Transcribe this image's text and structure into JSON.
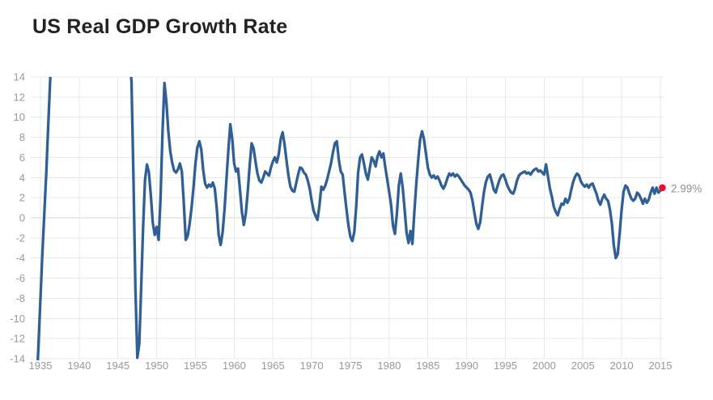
{
  "header": {
    "title": "US Real GDP Growth Rate"
  },
  "chart_data": {
    "type": "line",
    "title": "US Real GDP Growth Rate",
    "xlabel": "",
    "ylabel": "",
    "legend": "none",
    "grid": true,
    "x_ticks": [
      1935,
      1940,
      1945,
      1950,
      1955,
      1960,
      1965,
      1970,
      1975,
      1980,
      1985,
      1990,
      1995,
      2000,
      2005,
      2010,
      2015
    ],
    "y_ticks": [
      14,
      12,
      10,
      8,
      6,
      4,
      2,
      0,
      -2,
      -4,
      -6,
      -8,
      -10,
      -12,
      -14
    ],
    "xlim": [
      1933.75,
      2015.42
    ],
    "ylim": [
      -14,
      14
    ],
    "last_point": {
      "year": 2015.25,
      "value": 2.99,
      "label": "2.99%"
    },
    "colors": {
      "line": "#2f5f95",
      "marker": "#e8112d",
      "grid": "#e8e8e8",
      "zero_line": "#d6d6d6",
      "axis_label": "#999999",
      "value_label": "#909090",
      "title": "#222222"
    },
    "series": [
      {
        "name": "US Real GDP Growth Rate",
        "unit": "%",
        "points": [
          [
            1934.5,
            -17
          ],
          [
            1934.75,
            -12.5
          ],
          [
            1935,
            -8
          ],
          [
            1935.25,
            -3.5
          ],
          [
            1935.5,
            0.5
          ],
          [
            1935.75,
            4.5
          ],
          [
            1936,
            9
          ],
          [
            1936.25,
            13.5
          ],
          [
            1936.5,
            17
          ],
          [
            1937,
            20
          ],
          [
            1945,
            20
          ],
          [
            1946,
            17
          ],
          [
            1946.5,
            16
          ],
          [
            1946.75,
            13.5
          ],
          [
            1947,
            4
          ],
          [
            1947.25,
            -7
          ],
          [
            1947.5,
            -13.9
          ],
          [
            1947.75,
            -12.5
          ],
          [
            1948,
            -7
          ],
          [
            1948.25,
            -1
          ],
          [
            1948.5,
            3.8
          ],
          [
            1948.75,
            5.3
          ],
          [
            1949,
            4.5
          ],
          [
            1949.25,
            2.2
          ],
          [
            1949.5,
            -0.5
          ],
          [
            1949.75,
            -1.7
          ],
          [
            1950,
            -0.9
          ],
          [
            1950.25,
            -2.2
          ],
          [
            1950.5,
            2
          ],
          [
            1950.75,
            8.5
          ],
          [
            1951,
            13.4
          ],
          [
            1951.25,
            11.5
          ],
          [
            1951.5,
            8.6
          ],
          [
            1951.75,
            6.6
          ],
          [
            1952,
            5.5
          ],
          [
            1952.25,
            4.7
          ],
          [
            1952.5,
            4.5
          ],
          [
            1952.75,
            4.8
          ],
          [
            1953,
            5.4
          ],
          [
            1953.25,
            4.6
          ],
          [
            1953.5,
            1.5
          ],
          [
            1953.75,
            -2.2
          ],
          [
            1954,
            -1.8
          ],
          [
            1954.25,
            -0.6
          ],
          [
            1954.5,
            1
          ],
          [
            1954.75,
            3
          ],
          [
            1955,
            5.4
          ],
          [
            1955.25,
            7
          ],
          [
            1955.5,
            7.6
          ],
          [
            1955.75,
            6.8
          ],
          [
            1956,
            4.8
          ],
          [
            1956.25,
            3.4
          ],
          [
            1956.5,
            3
          ],
          [
            1956.75,
            3.3
          ],
          [
            1957,
            3.1
          ],
          [
            1957.25,
            3.5
          ],
          [
            1957.5,
            2.9
          ],
          [
            1957.75,
            1
          ],
          [
            1958,
            -1.7
          ],
          [
            1958.25,
            -2.7
          ],
          [
            1958.5,
            -1.5
          ],
          [
            1958.75,
            0.8
          ],
          [
            1959,
            3.8
          ],
          [
            1959.25,
            6.8
          ],
          [
            1959.5,
            9.3
          ],
          [
            1959.75,
            7.8
          ],
          [
            1960,
            5.4
          ],
          [
            1960.25,
            4.6
          ],
          [
            1960.5,
            4.9
          ],
          [
            1960.75,
            2.8
          ],
          [
            1961,
            0.6
          ],
          [
            1961.25,
            -0.7
          ],
          [
            1961.5,
            0.4
          ],
          [
            1961.75,
            2.6
          ],
          [
            1962,
            5.2
          ],
          [
            1962.25,
            7.4
          ],
          [
            1962.5,
            6.9
          ],
          [
            1962.75,
            5.6
          ],
          [
            1963,
            4.4
          ],
          [
            1963.25,
            3.7
          ],
          [
            1963.5,
            3.5
          ],
          [
            1963.75,
            4
          ],
          [
            1964,
            4.6
          ],
          [
            1964.25,
            4.4
          ],
          [
            1964.5,
            4.2
          ],
          [
            1964.75,
            5
          ],
          [
            1965,
            5.6
          ],
          [
            1965.25,
            6
          ],
          [
            1965.5,
            5.5
          ],
          [
            1965.75,
            6.3
          ],
          [
            1966,
            7.8
          ],
          [
            1966.25,
            8.5
          ],
          [
            1966.5,
            7.3
          ],
          [
            1966.75,
            5.7
          ],
          [
            1967,
            4.2
          ],
          [
            1967.25,
            3.1
          ],
          [
            1967.5,
            2.7
          ],
          [
            1967.75,
            2.6
          ],
          [
            1968,
            3.4
          ],
          [
            1968.25,
            4.3
          ],
          [
            1968.5,
            5
          ],
          [
            1968.75,
            4.9
          ],
          [
            1969,
            4.5
          ],
          [
            1969.25,
            4.3
          ],
          [
            1969.5,
            3.7
          ],
          [
            1969.75,
            2.9
          ],
          [
            1970,
            1.7
          ],
          [
            1970.25,
            0.7
          ],
          [
            1970.5,
            0.2
          ],
          [
            1970.75,
            -0.2
          ],
          [
            1971,
            1.2
          ],
          [
            1971.25,
            3.1
          ],
          [
            1971.5,
            2.8
          ],
          [
            1971.75,
            3.2
          ],
          [
            1972,
            3.8
          ],
          [
            1972.25,
            4.6
          ],
          [
            1972.5,
            5.4
          ],
          [
            1972.75,
            6.5
          ],
          [
            1973,
            7.4
          ],
          [
            1973.25,
            7.6
          ],
          [
            1973.5,
            5.8
          ],
          [
            1973.75,
            4.6
          ],
          [
            1974,
            4.3
          ],
          [
            1974.25,
            2.5
          ],
          [
            1974.5,
            0.8
          ],
          [
            1974.75,
            -0.8
          ],
          [
            1975,
            -1.9
          ],
          [
            1975.25,
            -2.3
          ],
          [
            1975.5,
            -1.4
          ],
          [
            1975.75,
            1.2
          ],
          [
            1976,
            4.5
          ],
          [
            1976.25,
            6
          ],
          [
            1976.5,
            6.3
          ],
          [
            1976.75,
            5.4
          ],
          [
            1977,
            4.4
          ],
          [
            1977.25,
            3.8
          ],
          [
            1977.5,
            4.9
          ],
          [
            1977.75,
            6
          ],
          [
            1978,
            5.7
          ],
          [
            1978.25,
            5.1
          ],
          [
            1978.5,
            6.1
          ],
          [
            1978.75,
            6.6
          ],
          [
            1979,
            6
          ],
          [
            1979.25,
            6.4
          ],
          [
            1979.5,
            5
          ],
          [
            1979.75,
            3.8
          ],
          [
            1980,
            2.6
          ],
          [
            1980.25,
            1.3
          ],
          [
            1980.5,
            -0.8
          ],
          [
            1980.75,
            -1.6
          ],
          [
            1981,
            0.4
          ],
          [
            1981.25,
            3.2
          ],
          [
            1981.5,
            4.4
          ],
          [
            1981.75,
            3
          ],
          [
            1982,
            0.8
          ],
          [
            1982.25,
            -1.5
          ],
          [
            1982.5,
            -2.5
          ],
          [
            1982.75,
            -1.3
          ],
          [
            1983,
            -2.6
          ],
          [
            1983.25,
            0.6
          ],
          [
            1983.5,
            3.4
          ],
          [
            1983.75,
            5.8
          ],
          [
            1984,
            7.8
          ],
          [
            1984.25,
            8.6
          ],
          [
            1984.5,
            7.8
          ],
          [
            1984.75,
            6.4
          ],
          [
            1985,
            5
          ],
          [
            1985.25,
            4.3
          ],
          [
            1985.5,
            4
          ],
          [
            1985.75,
            4.2
          ],
          [
            1986,
            3.9
          ],
          [
            1986.25,
            4.1
          ],
          [
            1986.5,
            3.7
          ],
          [
            1986.75,
            3.2
          ],
          [
            1987,
            2.9
          ],
          [
            1987.25,
            3.3
          ],
          [
            1987.5,
            3.9
          ],
          [
            1987.75,
            4.4
          ],
          [
            1988,
            4.2
          ],
          [
            1988.25,
            4.4
          ],
          [
            1988.5,
            4.1
          ],
          [
            1988.75,
            4.3
          ],
          [
            1989,
            4.1
          ],
          [
            1989.25,
            3.8
          ],
          [
            1989.5,
            3.5
          ],
          [
            1989.75,
            3.2
          ],
          [
            1990,
            3
          ],
          [
            1990.25,
            2.8
          ],
          [
            1990.5,
            2.5
          ],
          [
            1990.75,
            1.7
          ],
          [
            1991,
            0.5
          ],
          [
            1991.25,
            -0.6
          ],
          [
            1991.5,
            -1.1
          ],
          [
            1991.75,
            -0.4
          ],
          [
            1992,
            1.2
          ],
          [
            1992.25,
            2.6
          ],
          [
            1992.5,
            3.6
          ],
          [
            1992.75,
            4.1
          ],
          [
            1993,
            4.3
          ],
          [
            1993.25,
            3.6
          ],
          [
            1993.5,
            2.8
          ],
          [
            1993.75,
            2.5
          ],
          [
            1994,
            3.2
          ],
          [
            1994.25,
            3.8
          ],
          [
            1994.5,
            4.2
          ],
          [
            1994.75,
            4.3
          ],
          [
            1995,
            3.8
          ],
          [
            1995.25,
            3.2
          ],
          [
            1995.5,
            2.8
          ],
          [
            1995.75,
            2.5
          ],
          [
            1996,
            2.4
          ],
          [
            1996.25,
            2.9
          ],
          [
            1996.5,
            3.7
          ],
          [
            1996.75,
            4.2
          ],
          [
            1997,
            4.4
          ],
          [
            1997.25,
            4.5
          ],
          [
            1997.5,
            4.6
          ],
          [
            1997.75,
            4.4
          ],
          [
            1998,
            4.5
          ],
          [
            1998.25,
            4.3
          ],
          [
            1998.5,
            4.6
          ],
          [
            1998.75,
            4.8
          ],
          [
            1999,
            4.9
          ],
          [
            1999.25,
            4.6
          ],
          [
            1999.5,
            4.7
          ],
          [
            1999.75,
            4.5
          ],
          [
            2000,
            4.3
          ],
          [
            2000.25,
            5.3
          ],
          [
            2000.5,
            4.1
          ],
          [
            2000.75,
            2.9
          ],
          [
            2001,
            2.1
          ],
          [
            2001.25,
            1.1
          ],
          [
            2001.5,
            0.6
          ],
          [
            2001.75,
            0.25
          ],
          [
            2002,
            0.9
          ],
          [
            2002.25,
            1.4
          ],
          [
            2002.5,
            1.3
          ],
          [
            2002.75,
            1.9
          ],
          [
            2003,
            1.5
          ],
          [
            2003.25,
            1.9
          ],
          [
            2003.5,
            2.8
          ],
          [
            2003.75,
            3.6
          ],
          [
            2004,
            4.1
          ],
          [
            2004.25,
            4.4
          ],
          [
            2004.5,
            4.2
          ],
          [
            2004.75,
            3.6
          ],
          [
            2005,
            3.3
          ],
          [
            2005.25,
            3.1
          ],
          [
            2005.5,
            3.3
          ],
          [
            2005.75,
            3
          ],
          [
            2006,
            3.3
          ],
          [
            2006.25,
            3.4
          ],
          [
            2006.5,
            2.9
          ],
          [
            2006.75,
            2.4
          ],
          [
            2007,
            1.7
          ],
          [
            2007.25,
            1.3
          ],
          [
            2007.5,
            1.9
          ],
          [
            2007.75,
            2.3
          ],
          [
            2008,
            1.9
          ],
          [
            2008.25,
            1.7
          ],
          [
            2008.5,
            0.8
          ],
          [
            2008.75,
            -0.6
          ],
          [
            2009,
            -2.8
          ],
          [
            2009.25,
            -4
          ],
          [
            2009.5,
            -3.6
          ],
          [
            2009.75,
            -1.5
          ],
          [
            2010,
            0.8
          ],
          [
            2010.25,
            2.6
          ],
          [
            2010.5,
            3.2
          ],
          [
            2010.75,
            3
          ],
          [
            2011,
            2.4
          ],
          [
            2011.25,
            1.9
          ],
          [
            2011.5,
            1.7
          ],
          [
            2011.75,
            1.9
          ],
          [
            2012,
            2.5
          ],
          [
            2012.25,
            2.3
          ],
          [
            2012.5,
            1.9
          ],
          [
            2012.75,
            1.4
          ],
          [
            2013,
            1.9
          ],
          [
            2013.25,
            1.5
          ],
          [
            2013.5,
            1.8
          ],
          [
            2013.75,
            2.5
          ],
          [
            2014,
            3
          ],
          [
            2014.25,
            2.4
          ],
          [
            2014.5,
            3
          ],
          [
            2014.75,
            2.5
          ],
          [
            2015,
            2.7
          ],
          [
            2015.25,
            2.99
          ]
        ]
      }
    ]
  }
}
